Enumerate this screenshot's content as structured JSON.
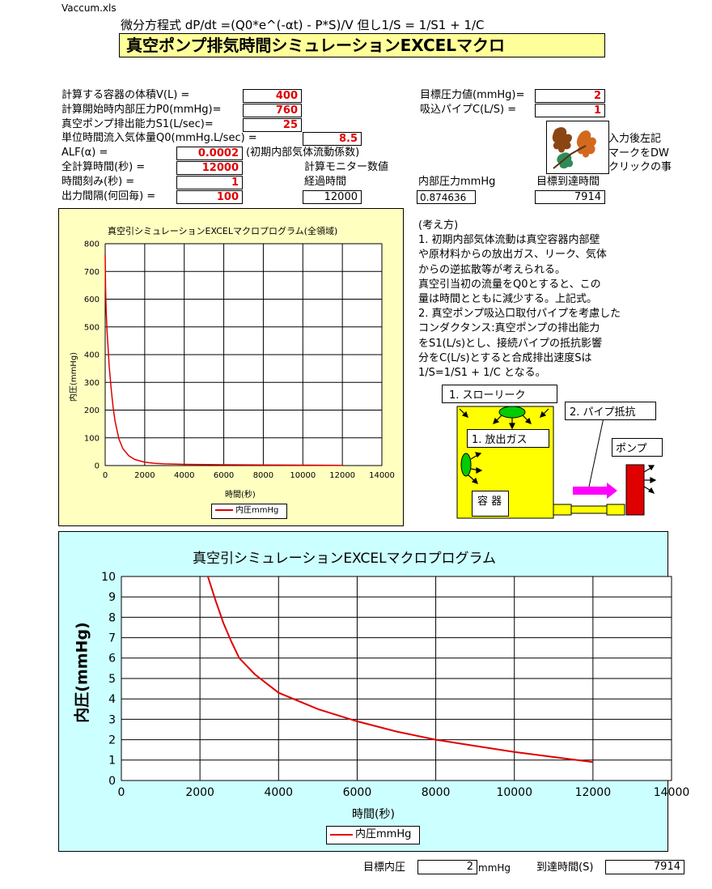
{
  "file_name": "Vaccum.xls",
  "formula": "微分方程式  dP/dt =(Q0*e^(-αt) - P*S)/V    但し1/S = 1/S1  +  1/C",
  "title": "真空ポンプ排気時間シミュレーションEXCELマクロ",
  "params": [
    {
      "label": "計算する容器の体積V(L) =",
      "value": "400"
    },
    {
      "label": "計算開始時内部圧力P0(mmHg)=",
      "value": "760"
    },
    {
      "label": "真空ポンプ排出能力S1(L/sec)=",
      "value": "25"
    },
    {
      "label": "単位時間流入気体量Q0(mmHg.L/sec) =",
      "value": "8.5"
    },
    {
      "label": "ALF(α)       =",
      "value": "0.0002",
      "note": "(初期内部気体流動係数)"
    },
    {
      "label": "全計算時間(秒) =",
      "value": "12000"
    },
    {
      "label": "時間刻み(秒)      =",
      "value": "1"
    },
    {
      "label": "出力間隔(何回毎) =",
      "value": "100"
    }
  ],
  "right_params": [
    {
      "label": "目標圧力値(mmHg)=",
      "value": "2"
    },
    {
      "label": "吸込パイプC(L/S) =",
      "value": "1"
    }
  ],
  "instruction": [
    "入力後左記",
    "マークをDW",
    "クリックの事"
  ],
  "monitor": {
    "heading": "計算モニター数値",
    "elapsed_label": "経過時間",
    "elapsed_value": "12000",
    "pressure_label": "内部圧力mmHg",
    "pressure_value": "0.874636",
    "target_label": "目標到達時間",
    "target_value": "7914"
  },
  "notes": [
    "(考え方)",
    "1. 初期内部気体流動は真空容器内部壁",
    "    や原材料からの放出ガス、リーク、気体",
    "    からの逆拡散等が考えられる。",
    "    真空引当初の流量をQ0とすると、この",
    "    量は時間とともに減少する。上記式。",
    "2. 真空ポンプ吸込口取付パイプを考慮した",
    "    コンダクタンス:真空ポンプの排出能力",
    "    をS1(L/s)とし、接続パイプの抵抗影響",
    "    分をC(L/s)とすると合成排出速度Sは",
    "    1/S=1/S1  +  1/C    となる。"
  ],
  "diagram": {
    "slow_leak": "1. スローリーク",
    "outgas": "1. 放出ガス",
    "pipe_resistance": "2. パイプ抵抗",
    "pump": "ポンプ",
    "vessel": "容     器"
  },
  "footer": {
    "target_label": "目標内圧",
    "target_value": "2",
    "target_unit": "mmHg",
    "time_label": "到達時間(S)",
    "time_value": "7914"
  },
  "colors": {
    "series": "#e00000",
    "chart1_bg": "#ffffc0",
    "chart2_bg": "#ccffff",
    "title_bg": "#ffff99",
    "vessel": "#ffff00",
    "arrow": "#ff00ff",
    "pump": "#e00000"
  },
  "chart_data": [
    {
      "type": "line",
      "title": "真空引シミュレーションEXCELマクロプログラム(全領域)",
      "xlabel": "時間(秒)",
      "ylabel": "内圧(mmHg)",
      "xlim": [
        0,
        14000
      ],
      "ylim": [
        0,
        800
      ],
      "xticks": [
        0,
        2000,
        4000,
        6000,
        8000,
        10000,
        12000,
        14000
      ],
      "yticks": [
        0,
        100,
        200,
        300,
        400,
        500,
        600,
        700,
        800
      ],
      "grid": true,
      "legend": "bottom",
      "series": [
        {
          "name": "内圧mmHg",
          "x": [
            0,
            20,
            50,
            100,
            150,
            200,
            300,
            400,
            500,
            700,
            900,
            1200,
            1500,
            2000,
            2500,
            3000,
            4000,
            6000,
            8000,
            10000,
            12000
          ],
          "y": [
            760,
            640,
            560,
            480,
            420,
            360,
            280,
            210,
            160,
            95,
            60,
            35,
            22,
            12,
            8,
            6,
            4.3,
            2.9,
            2.0,
            1.4,
            0.9
          ]
        }
      ]
    },
    {
      "type": "line",
      "title": "真空引シミュレーションEXCELマクロプログラム",
      "xlabel": "時間(秒)",
      "ylabel": "内圧(mmHg)",
      "xlim": [
        0,
        14000
      ],
      "ylim": [
        0,
        10
      ],
      "xticks": [
        0,
        2000,
        4000,
        6000,
        8000,
        10000,
        12000,
        14000
      ],
      "yticks": [
        0,
        1,
        2,
        3,
        4,
        5,
        6,
        7,
        8,
        9,
        10
      ],
      "grid": true,
      "legend": "bottom",
      "series": [
        {
          "name": "内圧mmHg",
          "x": [
            2200,
            2400,
            2600,
            2800,
            3000,
            3400,
            4000,
            5000,
            6000,
            7000,
            8000,
            9000,
            10000,
            11000,
            12000
          ],
          "y": [
            10,
            8.8,
            7.7,
            6.8,
            6.0,
            5.2,
            4.3,
            3.5,
            2.9,
            2.4,
            2.0,
            1.7,
            1.4,
            1.15,
            0.9
          ]
        }
      ]
    }
  ]
}
